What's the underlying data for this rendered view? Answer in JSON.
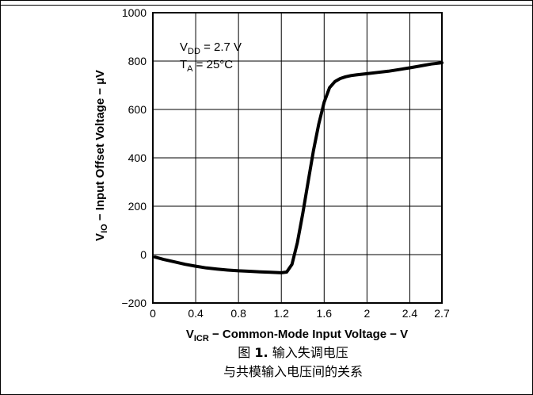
{
  "chart_data": {
    "type": "line",
    "xlabel_main": "V",
    "xlabel_sub": "ICR",
    "xlabel_rest": " − Common-Mode Input Voltage − V",
    "ylabel_main": "V",
    "ylabel_sub": "IO",
    "ylabel_rest": " − Input Offset Voltage − µV",
    "xlim": [
      0,
      2.7
    ],
    "ylim": [
      -200,
      1000
    ],
    "x_ticks": [
      0,
      0.4,
      0.8,
      1.2,
      1.6,
      2,
      2.4,
      2.7
    ],
    "x_tick_labels": [
      "0",
      "0.4",
      "0.8",
      "1.2",
      "1.6",
      "2",
      "2.4",
      "2.7"
    ],
    "y_ticks": [
      -200,
      0,
      200,
      400,
      600,
      800,
      1000
    ],
    "y_tick_labels": [
      "−200",
      "0",
      "200",
      "400",
      "600",
      "800",
      "1000"
    ],
    "grid": true,
    "annotations": {
      "vdd_main": "V",
      "vdd_sub": "DD",
      "vdd_rest": " = 2.7 V",
      "ta_main": "T",
      "ta_sub": "A",
      "ta_rest": " = 25°C"
    },
    "series": [
      {
        "x": [
          0.02,
          0.1,
          0.2,
          0.3,
          0.4,
          0.5,
          0.6,
          0.7,
          0.8,
          0.9,
          1.0,
          1.1,
          1.2,
          1.25,
          1.3,
          1.35,
          1.4,
          1.45,
          1.5,
          1.55,
          1.6,
          1.65,
          1.7,
          1.75,
          1.8,
          1.85,
          1.9,
          2.0,
          2.1,
          2.2,
          2.3,
          2.4,
          2.5,
          2.6,
          2.7
        ],
        "y": [
          -10,
          -20,
          -30,
          -40,
          -48,
          -55,
          -60,
          -64,
          -67,
          -69,
          -71,
          -73,
          -75,
          -72,
          -40,
          50,
          170,
          300,
          430,
          540,
          630,
          690,
          715,
          728,
          735,
          740,
          743,
          748,
          753,
          758,
          765,
          772,
          780,
          788,
          793
        ]
      }
    ]
  },
  "caption": {
    "line1_prefix": "图 ",
    "line1_num": "1.",
    "line1_rest": " 输入失调电压",
    "line2": "与共模输入电压间的关系"
  }
}
